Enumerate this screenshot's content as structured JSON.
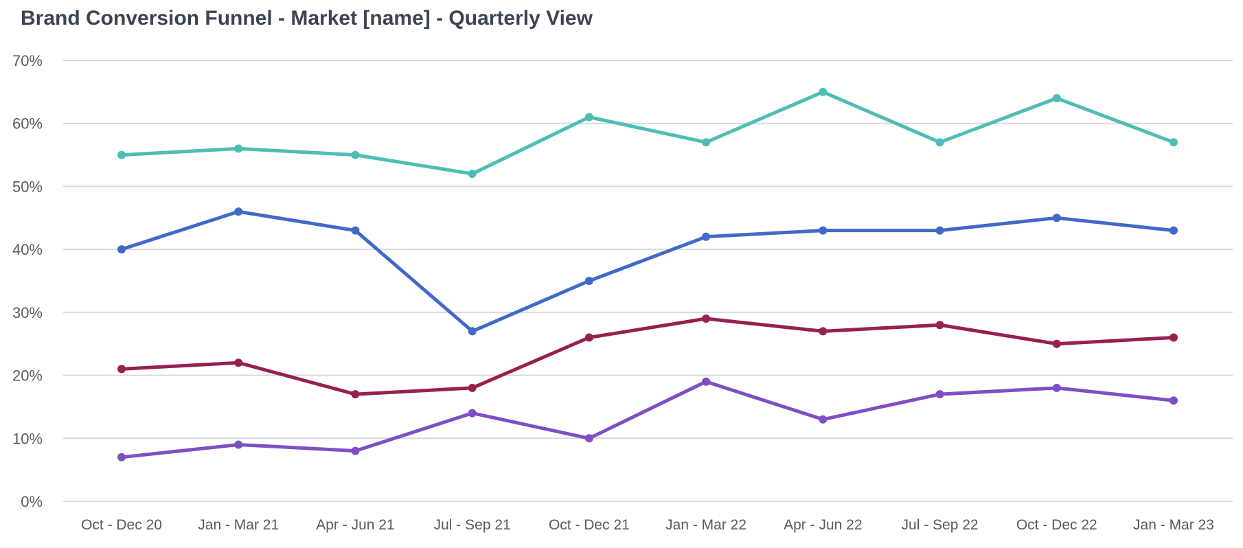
{
  "chart_data": {
    "type": "line",
    "title": "Brand Conversion Funnel - Market [name] - Quarterly View",
    "xlabel": "",
    "ylabel": "",
    "categories": [
      "Oct - Dec 20",
      "Jan - Mar 21",
      "Apr - Jun 21",
      "Jul - Sep 21",
      "Oct - Dec 21",
      "Jan - Mar 22",
      "Apr - Jun 22",
      "Jul - Sep 22",
      "Oct - Dec 22",
      "Jan - Mar 23"
    ],
    "ylim": [
      0,
      70
    ],
    "y_ticks": [
      0,
      10,
      20,
      30,
      40,
      50,
      60,
      70
    ],
    "y_tick_labels": [
      "0%",
      "10%",
      "20%",
      "30%",
      "40%",
      "50%",
      "60%",
      "70%"
    ],
    "grid": "horizontal",
    "legend": "none",
    "series": [
      {
        "color": "#4dbdb5",
        "values": [
          55,
          56,
          55,
          52,
          61,
          57,
          65,
          57,
          64,
          57
        ]
      },
      {
        "color": "#4169c8",
        "values": [
          40,
          46,
          43,
          27,
          35,
          42,
          43,
          43,
          45,
          43
        ]
      },
      {
        "color": "#962050",
        "values": [
          21,
          22,
          17,
          18,
          26,
          29,
          27,
          28,
          25,
          26
        ]
      },
      {
        "color": "#7e4fc3",
        "values": [
          7,
          9,
          8,
          14,
          10,
          19,
          13,
          17,
          18,
          16
        ]
      }
    ]
  }
}
